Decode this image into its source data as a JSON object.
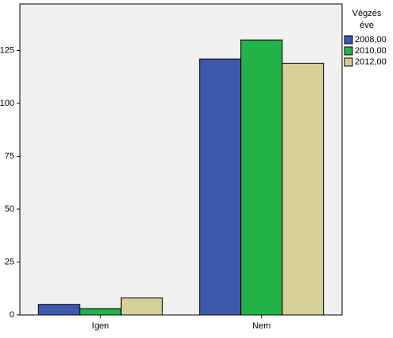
{
  "chart_data": {
    "type": "bar",
    "categories": [
      "Igen",
      "Nem"
    ],
    "series": [
      {
        "name": "2008,00",
        "color": "#3e58ac",
        "values": [
          5,
          121
        ]
      },
      {
        "name": "2010,00",
        "color": "#24b34a",
        "values": [
          3,
          130
        ]
      },
      {
        "name": "2012,00",
        "color": "#d6cf98",
        "values": [
          8,
          119
        ]
      }
    ],
    "ylim": [
      0,
      147
    ],
    "yticks": [
      0,
      25,
      50,
      75,
      100,
      125
    ],
    "legend_title": [
      "Végzés",
      "éve"
    ],
    "legend": "right",
    "grid": false
  }
}
